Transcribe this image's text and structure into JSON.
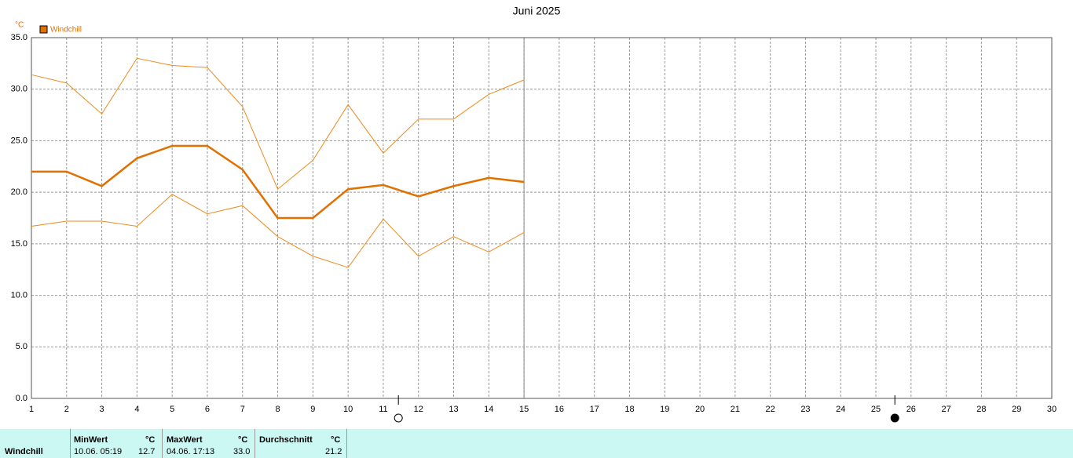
{
  "chart_data": {
    "type": "line",
    "title": "Juni 2025",
    "y_unit": "°C",
    "legend": {
      "label": "Windchill",
      "color": "#e07000"
    },
    "x": [
      1,
      2,
      3,
      4,
      5,
      6,
      7,
      8,
      9,
      10,
      11,
      12,
      13,
      14,
      15
    ],
    "series": [
      {
        "color": "#ee8a1e",
        "line_width": 1,
        "values": [
          31.4,
          30.6,
          27.6,
          33.0,
          32.3,
          32.1,
          28.3,
          20.3,
          23.1,
          28.5,
          23.8,
          27.1,
          27.1,
          29.5,
          30.9
        ]
      },
      {
        "color": "#e07000",
        "line_width": 2.5,
        "values": [
          22.0,
          22.0,
          20.6,
          23.3,
          24.5,
          24.5,
          22.2,
          17.5,
          17.5,
          20.3,
          20.7,
          19.6,
          20.6,
          21.4,
          21.0
        ]
      },
      {
        "color": "#ee8a1e",
        "line_width": 1,
        "values": [
          16.7,
          17.2,
          17.2,
          16.7,
          19.8,
          17.9,
          18.7,
          15.7,
          13.8,
          12.7,
          17.4,
          13.8,
          15.7,
          14.2,
          16.1
        ]
      }
    ],
    "xlim": [
      1,
      30
    ],
    "xticks": [
      1,
      2,
      3,
      4,
      5,
      6,
      7,
      8,
      9,
      10,
      11,
      12,
      13,
      14,
      15,
      16,
      17,
      18,
      19,
      20,
      21,
      22,
      23,
      24,
      25,
      26,
      27,
      28,
      29,
      30
    ],
    "ylim": [
      0,
      35
    ],
    "yticks": [
      {
        "value": 0,
        "label": "0.0"
      },
      {
        "value": 5,
        "label": "5.0"
      },
      {
        "value": 10,
        "label": "10.0"
      },
      {
        "value": 15,
        "label": "15.0"
      },
      {
        "value": 20,
        "label": "20.0"
      },
      {
        "value": 25,
        "label": "25.0"
      },
      {
        "value": 30,
        "label": "30.0"
      },
      {
        "value": 35,
        "label": "35.0"
      }
    ],
    "grid": true,
    "current_day": 15,
    "moon_phases": [
      {
        "x": 11.43,
        "phase": "full"
      },
      {
        "x": 25.54,
        "phase": "new"
      }
    ]
  },
  "table": {
    "row_label": "Windchill",
    "columns": [
      {
        "header": "MinWert",
        "unit": "°C",
        "time": "10.06.  05:19",
        "value": "12.7"
      },
      {
        "header": "MaxWert",
        "unit": "°C",
        "time": "04.06.  17:13",
        "value": "33.0"
      },
      {
        "header": "Durchschnitt",
        "unit": "°C",
        "value": "21.2"
      }
    ]
  }
}
